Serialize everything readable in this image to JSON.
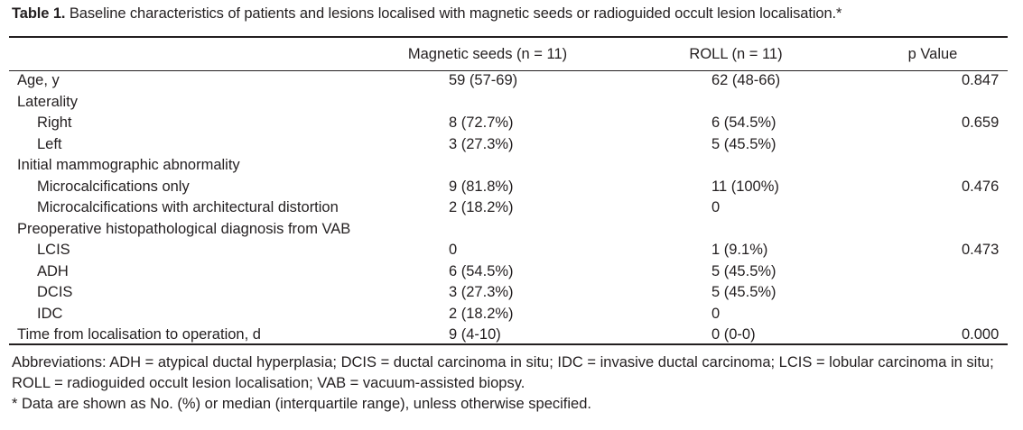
{
  "caption": {
    "label": "Table 1.",
    "text": " Baseline characteristics of patients and lesions localised with magnetic seeds or radioguided occult lesion localisation.*"
  },
  "headers": [
    "",
    "Magnetic seeds (n = 11)",
    "ROLL (n = 11)",
    "p Value"
  ],
  "rows": [
    {
      "label": "Age, y",
      "level": 0,
      "a": "59 (57-69)",
      "b": "62 (48-66)",
      "p": "0.847"
    },
    {
      "label": "Laterality",
      "level": 0,
      "a": "",
      "b": "",
      "p": ""
    },
    {
      "label": "Right",
      "level": 1,
      "a": "8 (72.7%)",
      "b": "6 (54.5%)",
      "p": "0.659"
    },
    {
      "label": "Left",
      "level": 1,
      "a": "3 (27.3%)",
      "b": "5 (45.5%)",
      "p": ""
    },
    {
      "label": "Initial mammographic abnormality",
      "level": 0,
      "a": "",
      "b": "",
      "p": ""
    },
    {
      "label": "Microcalcifications only",
      "level": 1,
      "a": "9 (81.8%)",
      "b": "11 (100%)",
      "p": "0.476"
    },
    {
      "label": "Microcalcifications with architectural distortion",
      "level": 1,
      "a": "2 (18.2%)",
      "b": "0",
      "p": ""
    },
    {
      "label": "Preoperative histopathological diagnosis from VAB",
      "level": 0,
      "a": "",
      "b": "",
      "p": ""
    },
    {
      "label": "LCIS",
      "level": 1,
      "a": "0",
      "b": "1 (9.1%)",
      "p": "0.473"
    },
    {
      "label": "ADH",
      "level": 1,
      "a": "6 (54.5%)",
      "b": "5 (45.5%)",
      "p": ""
    },
    {
      "label": "DCIS",
      "level": 1,
      "a": "3 (27.3%)",
      "b": "5 (45.5%)",
      "p": ""
    },
    {
      "label": "IDC",
      "level": 1,
      "a": "2 (18.2%)",
      "b": "0",
      "p": ""
    },
    {
      "label": "Time from localisation to operation, d",
      "level": 0,
      "a": "9 (4-10)",
      "b": "0 (0-0)",
      "p": "0.000"
    }
  ],
  "abbreviations": "Abbreviations: ADH = atypical ductal hyperplasia; DCIS = ductal carcinoma in situ; IDC = invasive ductal carcinoma; LCIS = lobular carcinoma in situ; ROLL = radioguided occult lesion localisation; VAB = vacuum-assisted biopsy.",
  "footnote": "* Data are shown as No. (%) or median (interquartile range), unless otherwise specified."
}
